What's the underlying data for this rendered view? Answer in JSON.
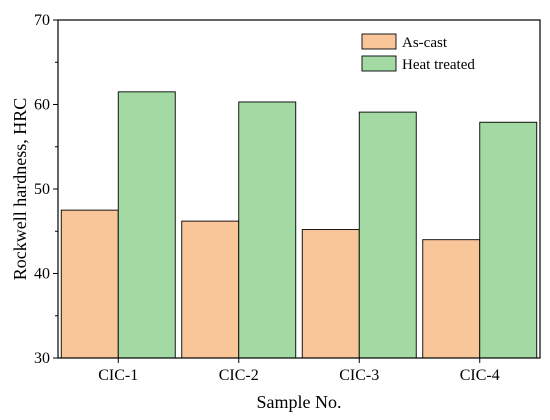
{
  "chart_data": {
    "type": "bar",
    "title": "",
    "xlabel": "Sample No.",
    "ylabel": "Rockwell hardness, HRC",
    "categories": [
      "CIC-1",
      "CIC-2",
      "CIC-3",
      "CIC-4"
    ],
    "series": [
      {
        "name": "As-cast",
        "values": [
          47.5,
          46.2,
          45.2,
          44.0
        ],
        "color": "#F9C699"
      },
      {
        "name": "Heat treated",
        "values": [
          61.5,
          60.3,
          59.1,
          57.9
        ],
        "color": "#A3D9A3"
      }
    ],
    "ylim": [
      30,
      70
    ],
    "yticks": [
      30,
      40,
      50,
      60,
      70
    ],
    "grid": false,
    "legend_position": "top-right"
  }
}
